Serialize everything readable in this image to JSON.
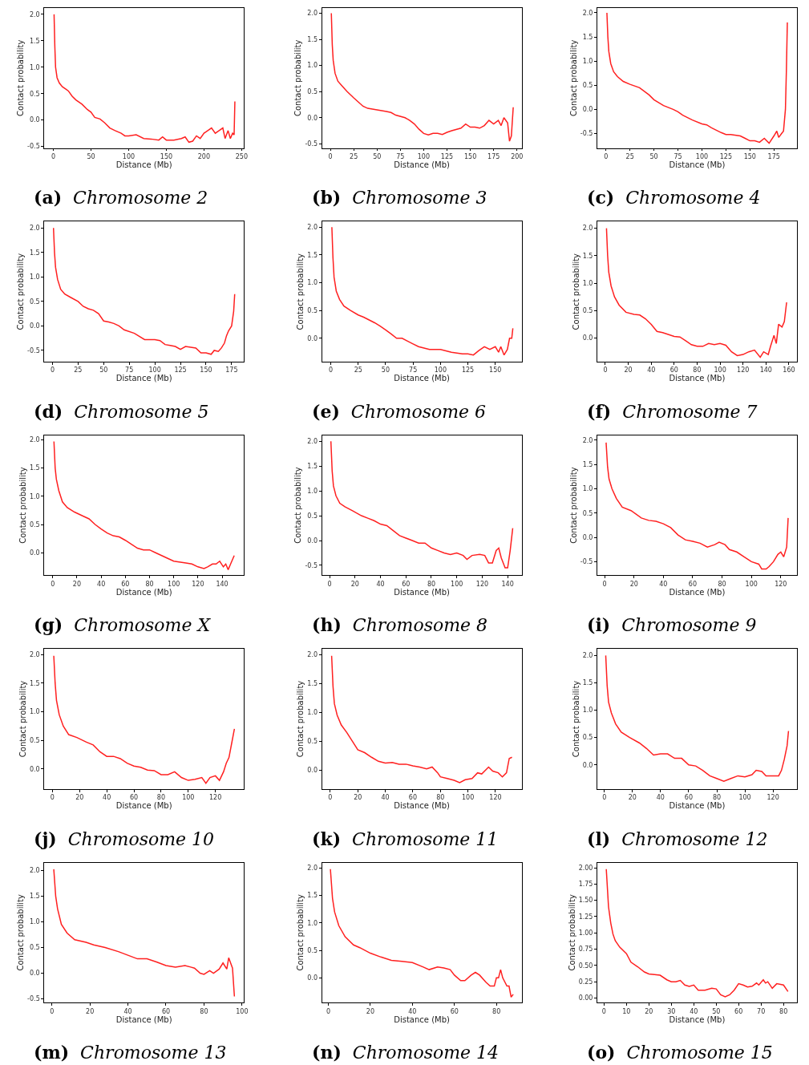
{
  "chart_data": [
    {
      "type": "line",
      "title": "(a) Chromosome 2",
      "xlabel": "Distance (Mb)",
      "ylabel": "Contact probability",
      "color": "#ff2020",
      "xlim": [
        -12,
        253
      ],
      "ylim": [
        -0.53,
        2.12
      ],
      "xticks": [
        0,
        50,
        100,
        150,
        200,
        250
      ],
      "yticks": [
        -0.5,
        {
          "value": 0,
          "label": "0.0"
        },
        0.5,
        {
          "value": 1,
          "label": "1.0"
        },
        1.5,
        {
          "value": 2,
          "label": "2.0"
        }
      ],
      "x": [
        1,
        2,
        3,
        5,
        8,
        12,
        17,
        20,
        25,
        30,
        38,
        45,
        50,
        55,
        62,
        68,
        75,
        82,
        90,
        95,
        100,
        110,
        120,
        130,
        140,
        145,
        150,
        160,
        170,
        175,
        180,
        185,
        190,
        195,
        200,
        205,
        210,
        215,
        220,
        225,
        228,
        232,
        235,
        238,
        240,
        241
      ],
      "values": [
        2.0,
        1.4,
        1.0,
        0.8,
        0.7,
        0.63,
        0.58,
        0.55,
        0.45,
        0.38,
        0.3,
        0.2,
        0.15,
        0.05,
        0.02,
        -0.05,
        -0.15,
        -0.2,
        -0.25,
        -0.3,
        -0.3,
        -0.28,
        -0.35,
        -0.36,
        -0.38,
        -0.32,
        -0.38,
        -0.38,
        -0.35,
        -0.32,
        -0.42,
        -0.4,
        -0.3,
        -0.35,
        -0.25,
        -0.2,
        -0.15,
        -0.25,
        -0.2,
        -0.15,
        -0.35,
        -0.2,
        -0.35,
        -0.25,
        -0.28,
        0.35
      ]
    },
    {
      "type": "line",
      "title": "(b) Chromosome 3",
      "xlabel": "Distance (Mb)",
      "ylabel": "Contact probability",
      "color": "#ff2020",
      "xlim": [
        -9,
        205
      ],
      "ylim": [
        -0.58,
        2.1
      ],
      "xticks": [
        0,
        25,
        50,
        75,
        100,
        125,
        150,
        175,
        200
      ],
      "yticks": [
        -0.5,
        {
          "value": 0,
          "label": "0.0"
        },
        0.5,
        {
          "value": 1,
          "label": "1.0"
        },
        1.5,
        {
          "value": 2,
          "label": "2.0"
        }
      ],
      "x": [
        1,
        2,
        3,
        5,
        8,
        12,
        18,
        25,
        30,
        35,
        40,
        50,
        60,
        65,
        70,
        80,
        85,
        90,
        95,
        100,
        105,
        110,
        115,
        120,
        125,
        130,
        140,
        145,
        150,
        155,
        160,
        165,
        170,
        175,
        180,
        183,
        186,
        190,
        192,
        194,
        196
      ],
      "values": [
        2.0,
        1.4,
        1.1,
        0.85,
        0.7,
        0.62,
        0.5,
        0.38,
        0.3,
        0.22,
        0.18,
        0.15,
        0.12,
        0.1,
        0.05,
        0.0,
        -0.05,
        -0.12,
        -0.22,
        -0.3,
        -0.33,
        -0.3,
        -0.3,
        -0.32,
        -0.28,
        -0.25,
        -0.2,
        -0.12,
        -0.18,
        -0.18,
        -0.2,
        -0.15,
        -0.05,
        -0.12,
        -0.05,
        -0.15,
        0.0,
        -0.1,
        -0.45,
        -0.35,
        0.2
      ]
    },
    {
      "type": "line",
      "title": "(c) Chromosome 4",
      "xlabel": "Distance (Mb)",
      "ylabel": "Contact probability",
      "color": "#ff2020",
      "xlim": [
        -9,
        199
      ],
      "ylim": [
        -0.8,
        2.1
      ],
      "xticks": [
        0,
        25,
        50,
        75,
        100,
        125,
        150,
        175
      ],
      "yticks": [
        -0.5,
        {
          "value": 0,
          "label": "0.0"
        },
        0.5,
        {
          "value": 1,
          "label": "1.0"
        },
        1.5,
        {
          "value": 2,
          "label": "2.0"
        }
      ],
      "x": [
        1,
        2,
        3,
        5,
        8,
        12,
        18,
        25,
        35,
        45,
        50,
        60,
        70,
        75,
        80,
        90,
        100,
        105,
        110,
        120,
        125,
        130,
        140,
        145,
        150,
        155,
        160,
        165,
        170,
        175,
        178,
        180,
        183,
        185,
        187,
        188,
        189
      ],
      "values": [
        2.0,
        1.5,
        1.2,
        0.95,
        0.78,
        0.68,
        0.58,
        0.52,
        0.45,
        0.3,
        0.2,
        0.08,
        0.0,
        -0.05,
        -0.12,
        -0.22,
        -0.3,
        -0.32,
        -0.38,
        -0.48,
        -0.52,
        -0.52,
        -0.55,
        -0.6,
        -0.65,
        -0.65,
        -0.68,
        -0.6,
        -0.7,
        -0.55,
        -0.45,
        -0.58,
        -0.5,
        -0.45,
        0.0,
        0.8,
        1.8
      ]
    },
    {
      "type": "line",
      "title": "(d) Chromosome 5",
      "xlabel": "Distance (Mb)",
      "ylabel": "Contact probability",
      "color": "#ff2020",
      "xlim": [
        -8,
        187
      ],
      "ylim": [
        -0.73,
        2.13
      ],
      "xticks": [
        0,
        25,
        50,
        75,
        100,
        125,
        150,
        175
      ],
      "yticks": [
        -0.5,
        {
          "value": 0,
          "label": "0.0"
        },
        0.5,
        {
          "value": 1,
          "label": "1.0"
        },
        1.5,
        {
          "value": 2,
          "label": "2.0"
        }
      ],
      "x": [
        1,
        2,
        3,
        5,
        8,
        12,
        18,
        25,
        30,
        35,
        40,
        45,
        50,
        55,
        60,
        65,
        70,
        80,
        90,
        100,
        105,
        110,
        115,
        120,
        125,
        130,
        140,
        145,
        150,
        155,
        158,
        162,
        165,
        168,
        170,
        172,
        175,
        177,
        178
      ],
      "values": [
        2.0,
        1.5,
        1.2,
        0.95,
        0.75,
        0.65,
        0.58,
        0.5,
        0.4,
        0.35,
        0.32,
        0.25,
        0.1,
        0.08,
        0.05,
        0.0,
        -0.08,
        -0.15,
        -0.28,
        -0.28,
        -0.3,
        -0.38,
        -0.4,
        -0.42,
        -0.48,
        -0.42,
        -0.45,
        -0.55,
        -0.55,
        -0.58,
        -0.5,
        -0.52,
        -0.45,
        -0.35,
        -0.2,
        -0.1,
        0.0,
        0.3,
        0.65
      ]
    },
    {
      "type": "line",
      "title": "(e) Chromosome 6",
      "xlabel": "Distance (Mb)",
      "ylabel": "Contact probability",
      "color": "#ff2020",
      "xlim": [
        -8,
        174
      ],
      "ylim": [
        -0.42,
        2.1
      ],
      "xticks": [
        0,
        25,
        50,
        75,
        100,
        125,
        150
      ],
      "yticks": [
        {
          "value": 0,
          "label": "0.0"
        },
        0.5,
        {
          "value": 1,
          "label": "1.0"
        },
        1.5,
        {
          "value": 2,
          "label": "2.0"
        }
      ],
      "x": [
        1,
        2,
        3,
        5,
        8,
        12,
        18,
        25,
        30,
        40,
        45,
        50,
        55,
        60,
        65,
        70,
        75,
        80,
        90,
        95,
        100,
        110,
        120,
        125,
        130,
        135,
        140,
        145,
        150,
        153,
        155,
        158,
        161,
        163,
        165,
        166
      ],
      "values": [
        2.0,
        1.45,
        1.1,
        0.85,
        0.7,
        0.58,
        0.5,
        0.42,
        0.38,
        0.28,
        0.22,
        0.15,
        0.08,
        0.0,
        0.0,
        -0.05,
        -0.1,
        -0.15,
        -0.2,
        -0.2,
        -0.2,
        -0.25,
        -0.28,
        -0.28,
        -0.3,
        -0.22,
        -0.15,
        -0.2,
        -0.15,
        -0.25,
        -0.15,
        -0.3,
        -0.2,
        0.0,
        0.0,
        0.18
      ]
    },
    {
      "type": "line",
      "title": "(f) Chromosome 7",
      "xlabel": "Distance (Mb)",
      "ylabel": "Contact probability",
      "color": "#ff2020",
      "xlim": [
        -7,
        167
      ],
      "ylim": [
        -0.43,
        2.12
      ],
      "xticks": [
        0,
        20,
        40,
        60,
        80,
        100,
        120,
        140,
        160
      ],
      "yticks": [
        {
          "value": 0,
          "label": "0.0"
        },
        0.5,
        {
          "value": 1,
          "label": "1.0"
        },
        1.5,
        {
          "value": 2,
          "label": "2.0"
        }
      ],
      "x": [
        1,
        2,
        3,
        5,
        8,
        12,
        18,
        25,
        30,
        35,
        40,
        45,
        50,
        60,
        65,
        70,
        75,
        80,
        85,
        90,
        95,
        100,
        105,
        110,
        115,
        120,
        125,
        130,
        135,
        138,
        142,
        144,
        147,
        149,
        151,
        154,
        156,
        158
      ],
      "values": [
        2.0,
        1.5,
        1.2,
        0.95,
        0.75,
        0.6,
        0.47,
        0.43,
        0.42,
        0.35,
        0.25,
        0.12,
        0.1,
        0.03,
        0.02,
        -0.05,
        -0.12,
        -0.15,
        -0.15,
        -0.1,
        -0.12,
        -0.1,
        -0.13,
        -0.25,
        -0.32,
        -0.3,
        -0.25,
        -0.22,
        -0.35,
        -0.25,
        -0.3,
        -0.15,
        0.05,
        -0.1,
        0.25,
        0.2,
        0.3,
        0.65
      ]
    },
    {
      "type": "line",
      "title": "(g) Chromosome X",
      "xlabel": "Distance (Mb)",
      "ylabel": "Contact probability",
      "color": "#ff2020",
      "xlim": [
        -7,
        158
      ],
      "ylim": [
        -0.4,
        2.08
      ],
      "xticks": [
        0,
        20,
        40,
        60,
        80,
        100,
        120,
        140
      ],
      "yticks": [
        {
          "value": 0,
          "label": "0.0"
        },
        0.5,
        {
          "value": 1,
          "label": "1.0"
        },
        1.5,
        {
          "value": 2,
          "label": "2.0"
        }
      ],
      "x": [
        1,
        2,
        3,
        5,
        8,
        12,
        18,
        25,
        30,
        35,
        40,
        45,
        50,
        55,
        60,
        65,
        70,
        75,
        80,
        85,
        90,
        95,
        100,
        110,
        115,
        120,
        125,
        128,
        132,
        135,
        138,
        141,
        143,
        145,
        147,
        150
      ],
      "values": [
        1.97,
        1.5,
        1.3,
        1.1,
        0.9,
        0.8,
        0.72,
        0.65,
        0.6,
        0.5,
        0.42,
        0.35,
        0.3,
        0.28,
        0.22,
        0.15,
        0.08,
        0.05,
        0.05,
        0.0,
        -0.05,
        -0.1,
        -0.15,
        -0.18,
        -0.2,
        -0.25,
        -0.28,
        -0.25,
        -0.2,
        -0.2,
        -0.15,
        -0.25,
        -0.2,
        -0.3,
        -0.2,
        -0.05
      ]
    },
    {
      "type": "line",
      "title": "(h) Chromosome 8",
      "xlabel": "Distance (Mb)",
      "ylabel": "Contact probability",
      "color": "#ff2020",
      "xlim": [
        -6,
        151
      ],
      "ylim": [
        -0.7,
        2.12
      ],
      "xticks": [
        0,
        20,
        40,
        60,
        80,
        100,
        120,
        140
      ],
      "yticks": [
        -0.5,
        {
          "value": 0,
          "label": "0.0"
        },
        0.5,
        {
          "value": 1,
          "label": "1.0"
        },
        1.5,
        {
          "value": 2,
          "label": "2.0"
        }
      ],
      "x": [
        1,
        2,
        3,
        5,
        8,
        12,
        18,
        25,
        30,
        35,
        40,
        45,
        50,
        55,
        60,
        65,
        70,
        75,
        80,
        85,
        90,
        95,
        100,
        105,
        108,
        112,
        118,
        122,
        125,
        128,
        131,
        133,
        135,
        138,
        140,
        142,
        144
      ],
      "values": [
        2.0,
        1.4,
        1.1,
        0.9,
        0.75,
        0.68,
        0.6,
        0.5,
        0.45,
        0.4,
        0.33,
        0.3,
        0.2,
        0.1,
        0.05,
        0.0,
        -0.05,
        -0.05,
        -0.15,
        -0.2,
        -0.25,
        -0.28,
        -0.25,
        -0.3,
        -0.38,
        -0.3,
        -0.28,
        -0.3,
        -0.45,
        -0.45,
        -0.2,
        -0.15,
        -0.35,
        -0.55,
        -0.55,
        -0.2,
        0.25
      ]
    },
    {
      "type": "line",
      "title": "(i) Chromosome 9",
      "xlabel": "Distance (Mb)",
      "ylabel": "Contact probability",
      "color": "#ff2020",
      "xlim": [
        -5,
        131
      ],
      "ylim": [
        -0.78,
        2.1
      ],
      "xticks": [
        0,
        20,
        40,
        60,
        80,
        100,
        120
      ],
      "yticks": [
        -0.5,
        {
          "value": 0,
          "label": "0.0"
        },
        0.5,
        {
          "value": 1,
          "label": "1.0"
        },
        1.5,
        {
          "value": 2,
          "label": "2.0"
        }
      ],
      "x": [
        1,
        2,
        3,
        5,
        8,
        12,
        18,
        25,
        30,
        35,
        40,
        45,
        50,
        55,
        60,
        65,
        70,
        75,
        78,
        82,
        85,
        90,
        95,
        100,
        105,
        107,
        110,
        112,
        115,
        118,
        120,
        122,
        124,
        125
      ],
      "values": [
        1.95,
        1.45,
        1.2,
        1.0,
        0.8,
        0.62,
        0.55,
        0.4,
        0.35,
        0.33,
        0.28,
        0.2,
        0.05,
        -0.05,
        -0.08,
        -0.12,
        -0.2,
        -0.15,
        -0.1,
        -0.15,
        -0.25,
        -0.3,
        -0.4,
        -0.5,
        -0.55,
        -0.65,
        -0.65,
        -0.6,
        -0.5,
        -0.35,
        -0.3,
        -0.4,
        -0.2,
        0.4
      ]
    },
    {
      "type": "line",
      "title": "(j) Chromosome 10",
      "xlabel": "Distance (Mb)",
      "ylabel": "Contact probability",
      "color": "#ff2020",
      "xlim": [
        -6,
        141
      ],
      "ylim": [
        -0.35,
        2.1
      ],
      "xticks": [
        0,
        20,
        40,
        60,
        80,
        100,
        120
      ],
      "yticks": [
        {
          "value": 0,
          "label": "0.0"
        },
        0.5,
        {
          "value": 1,
          "label": "1.0"
        },
        1.5,
        {
          "value": 2,
          "label": "2.0"
        }
      ],
      "x": [
        1,
        2,
        3,
        5,
        8,
        12,
        18,
        25,
        30,
        35,
        40,
        45,
        50,
        55,
        60,
        65,
        70,
        75,
        80,
        85,
        90,
        95,
        100,
        105,
        110,
        113,
        116,
        120,
        123,
        126,
        128,
        130,
        132,
        134
      ],
      "values": [
        1.98,
        1.5,
        1.2,
        0.95,
        0.75,
        0.6,
        0.55,
        0.47,
        0.42,
        0.3,
        0.22,
        0.22,
        0.18,
        0.1,
        0.05,
        0.03,
        -0.02,
        -0.03,
        -0.1,
        -0.1,
        -0.05,
        -0.15,
        -0.2,
        -0.18,
        -0.15,
        -0.25,
        -0.15,
        -0.12,
        -0.2,
        -0.05,
        0.1,
        0.2,
        0.45,
        0.7
      ]
    },
    {
      "type": "line",
      "title": "(k) Chromosome 11",
      "xlabel": "Distance (Mb)",
      "ylabel": "Contact probability",
      "color": "#ff2020",
      "xlim": [
        -6,
        139
      ],
      "ylim": [
        -0.33,
        2.1
      ],
      "xticks": [
        0,
        20,
        40,
        60,
        80,
        100,
        120
      ],
      "yticks": [
        {
          "value": 0,
          "label": "0.0"
        },
        0.5,
        {
          "value": 1,
          "label": "1.0"
        },
        1.5,
        {
          "value": 2,
          "label": "2.0"
        }
      ],
      "x": [
        1,
        2,
        3,
        5,
        8,
        12,
        16,
        20,
        25,
        30,
        35,
        40,
        45,
        50,
        55,
        60,
        65,
        70,
        74,
        78,
        80,
        85,
        90,
        94,
        98,
        103,
        107,
        110,
        115,
        118,
        122,
        125,
        128,
        130,
        132
      ],
      "values": [
        1.98,
        1.45,
        1.15,
        0.95,
        0.78,
        0.65,
        0.5,
        0.35,
        0.3,
        0.22,
        0.15,
        0.12,
        0.13,
        0.1,
        0.1,
        0.07,
        0.05,
        0.02,
        0.05,
        -0.05,
        -0.12,
        -0.15,
        -0.18,
        -0.22,
        -0.17,
        -0.15,
        -0.05,
        -0.07,
        0.05,
        -0.02,
        -0.05,
        -0.12,
        -0.05,
        0.2,
        0.22
      ]
    },
    {
      "type": "line",
      "title": "(l) Chromosome 12",
      "xlabel": "Distance (Mb)",
      "ylabel": "Contact probability",
      "color": "#ff2020",
      "xlim": [
        -5,
        137
      ],
      "ylim": [
        -0.44,
        2.12
      ],
      "xticks": [
        0,
        20,
        40,
        60,
        80,
        100,
        120
      ],
      "yticks": [
        {
          "value": 0,
          "label": "0.0"
        },
        0.5,
        {
          "value": 1,
          "label": "1.0"
        },
        1.5,
        {
          "value": 2,
          "label": "2.0"
        }
      ],
      "x": [
        1,
        2,
        3,
        5,
        8,
        12,
        18,
        25,
        30,
        35,
        40,
        45,
        50,
        55,
        60,
        65,
        70,
        75,
        80,
        85,
        90,
        95,
        100,
        105,
        108,
        112,
        115,
        120,
        124,
        126,
        128,
        130,
        131
      ],
      "values": [
        2.0,
        1.45,
        1.15,
        0.95,
        0.75,
        0.6,
        0.5,
        0.4,
        0.3,
        0.18,
        0.2,
        0.2,
        0.12,
        0.12,
        0.0,
        -0.02,
        -0.1,
        -0.2,
        -0.25,
        -0.3,
        -0.25,
        -0.2,
        -0.22,
        -0.18,
        -0.1,
        -0.12,
        -0.2,
        -0.2,
        -0.2,
        -0.1,
        0.1,
        0.35,
        0.62
      ]
    },
    {
      "type": "line",
      "title": "(m) Chromosome 13",
      "xlabel": "Distance (Mb)",
      "ylabel": "Contact probability",
      "color": "#ff2020",
      "xlim": [
        -4,
        101
      ],
      "ylim": [
        -0.57,
        2.15
      ],
      "xticks": [
        0,
        20,
        40,
        60,
        80,
        100
      ],
      "yticks": [
        -0.5,
        {
          "value": 0,
          "label": "0.0"
        },
        0.5,
        {
          "value": 1,
          "label": "1.0"
        },
        1.5,
        {
          "value": 2,
          "label": "2.0"
        }
      ],
      "x": [
        1,
        2,
        3,
        5,
        8,
        12,
        18,
        22,
        28,
        35,
        40,
        45,
        50,
        55,
        60,
        65,
        70,
        73,
        75,
        78,
        80,
        83,
        85,
        88,
        90,
        92,
        93,
        95,
        96
      ],
      "values": [
        2.02,
        1.5,
        1.25,
        0.95,
        0.78,
        0.65,
        0.6,
        0.55,
        0.5,
        0.42,
        0.35,
        0.28,
        0.28,
        0.22,
        0.15,
        0.12,
        0.15,
        0.12,
        0.1,
        0.0,
        -0.02,
        0.05,
        0.0,
        0.08,
        0.2,
        0.08,
        0.3,
        0.1,
        -0.45
      ]
    },
    {
      "type": "line",
      "title": "(n) Chromosome 14",
      "xlabel": "Distance (Mb)",
      "ylabel": "Contact probability",
      "color": "#ff2020",
      "xlim": [
        -3,
        92
      ],
      "ylim": [
        -0.45,
        2.1
      ],
      "xticks": [
        0,
        20,
        40,
        60,
        80
      ],
      "yticks": [
        {
          "value": 0,
          "label": "0.0"
        },
        0.5,
        {
          "value": 1,
          "label": "1.0"
        },
        1.5,
        {
          "value": 2,
          "label": "2.0"
        }
      ],
      "x": [
        1,
        2,
        3,
        5,
        8,
        12,
        15,
        20,
        25,
        30,
        35,
        40,
        45,
        48,
        52,
        55,
        58,
        60,
        63,
        65,
        68,
        70,
        72,
        75,
        77,
        79,
        80,
        81,
        82,
        83,
        85,
        86,
        87,
        88
      ],
      "values": [
        1.98,
        1.45,
        1.2,
        0.95,
        0.75,
        0.6,
        0.55,
        0.45,
        0.38,
        0.32,
        0.3,
        0.28,
        0.2,
        0.15,
        0.2,
        0.18,
        0.15,
        0.05,
        -0.05,
        -0.05,
        0.05,
        0.1,
        0.05,
        -0.08,
        -0.15,
        -0.15,
        0.0,
        0.0,
        0.15,
        0.0,
        -0.15,
        -0.15,
        -0.35,
        -0.3
      ]
    },
    {
      "type": "line",
      "title": "(o) Chromosome 15",
      "xlabel": "Distance (Mb)",
      "ylabel": "Contact probability",
      "color": "#ff2020",
      "xlim": [
        -3,
        86
      ],
      "ylim": [
        -0.07,
        2.08
      ],
      "xticks": [
        0,
        10,
        20,
        30,
        40,
        50,
        60,
        70,
        80
      ],
      "yticks": [
        {
          "value": 0,
          "label": "0.00"
        },
        0.25,
        {
          "value": 0.5,
          "label": "0.50"
        },
        0.75,
        {
          "value": 1,
          "label": "1.00"
        },
        1.25,
        {
          "value": 1.5,
          "label": "1.50"
        },
        1.75,
        {
          "value": 2,
          "label": "2.00"
        }
      ],
      "x": [
        1,
        2,
        3,
        4,
        5,
        7,
        10,
        12,
        15,
        18,
        20,
        25,
        28,
        30,
        32,
        34,
        36,
        38,
        40,
        42,
        45,
        48,
        50,
        52,
        54,
        56,
        58,
        60,
        62,
        64,
        66,
        68,
        69,
        71,
        72,
        73,
        75,
        77,
        80,
        82
      ],
      "values": [
        1.98,
        1.4,
        1.15,
        0.98,
        0.88,
        0.78,
        0.68,
        0.55,
        0.48,
        0.4,
        0.37,
        0.35,
        0.28,
        0.25,
        0.25,
        0.27,
        0.2,
        0.18,
        0.2,
        0.12,
        0.12,
        0.15,
        0.14,
        0.05,
        0.02,
        0.05,
        0.12,
        0.22,
        0.2,
        0.17,
        0.18,
        0.23,
        0.2,
        0.28,
        0.23,
        0.25,
        0.15,
        0.22,
        0.2,
        0.1
      ]
    }
  ]
}
